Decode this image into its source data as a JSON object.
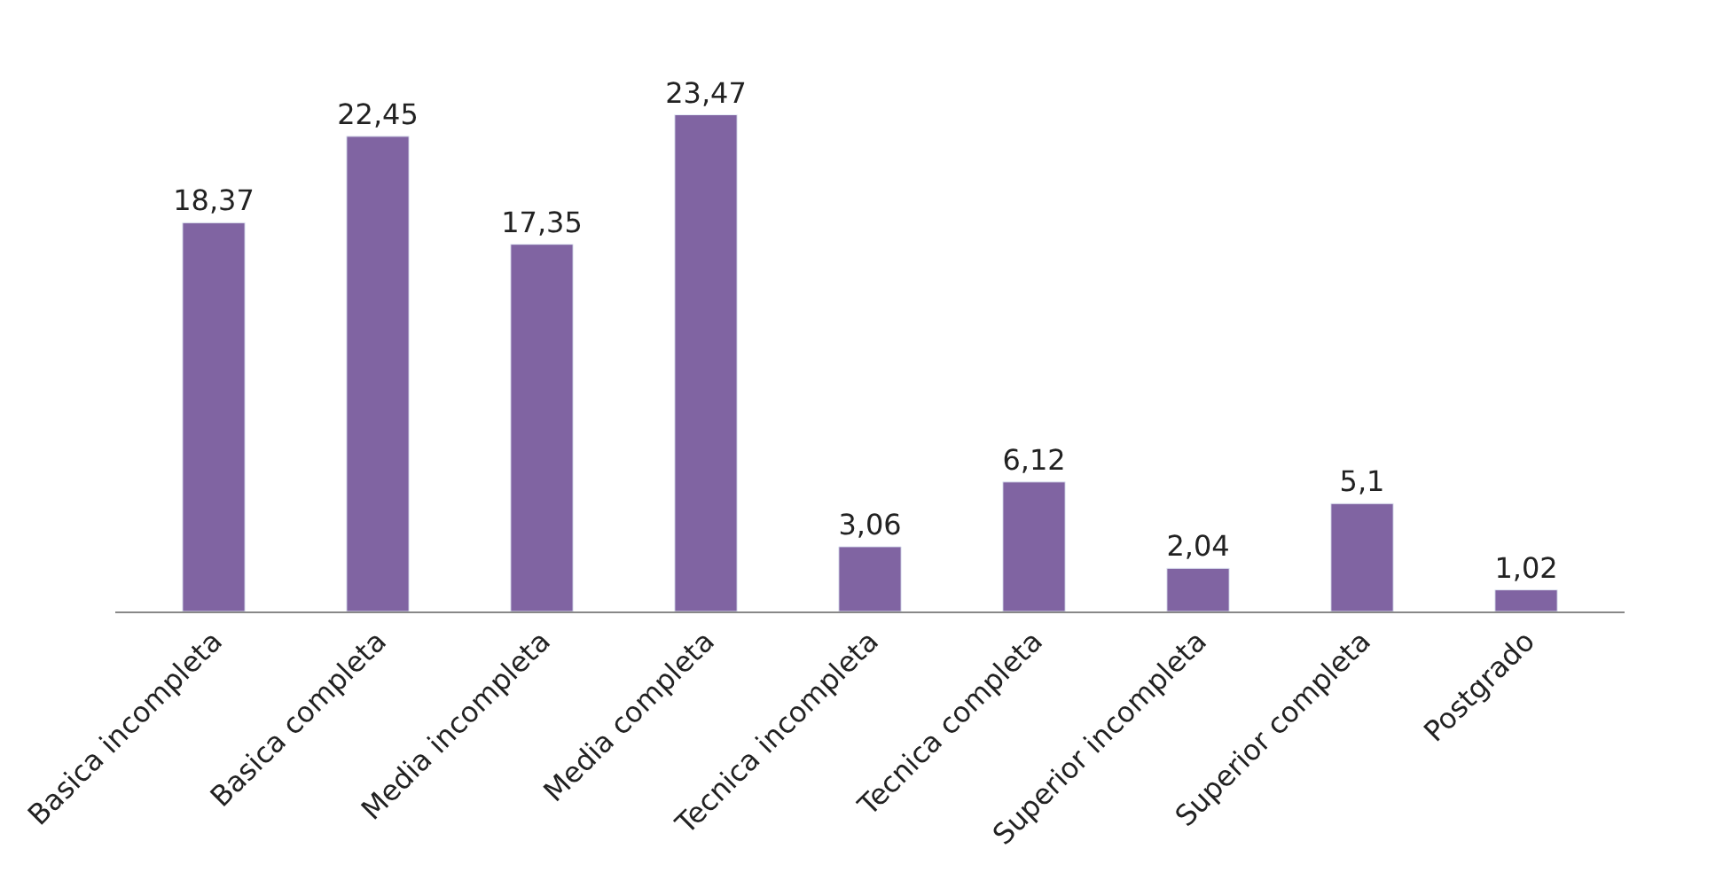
{
  "chart_data": {
    "type": "bar",
    "categories": [
      "Basica incompleta",
      "Basica completa",
      "Media incompleta",
      "Media completa",
      "Tecnica incompleta",
      "Tecnica completa",
      "Superior incompleta",
      "Superior completa",
      "Postgrado"
    ],
    "values": [
      18.37,
      22.45,
      17.35,
      23.47,
      3.06,
      6.12,
      2.04,
      5.1,
      1.02
    ],
    "value_labels": [
      "18,37",
      "22,45",
      "17,35",
      "23,47",
      "3,06",
      "6,12",
      "2,04",
      "5,1",
      "1,02"
    ],
    "color": "#8064a2"
  }
}
